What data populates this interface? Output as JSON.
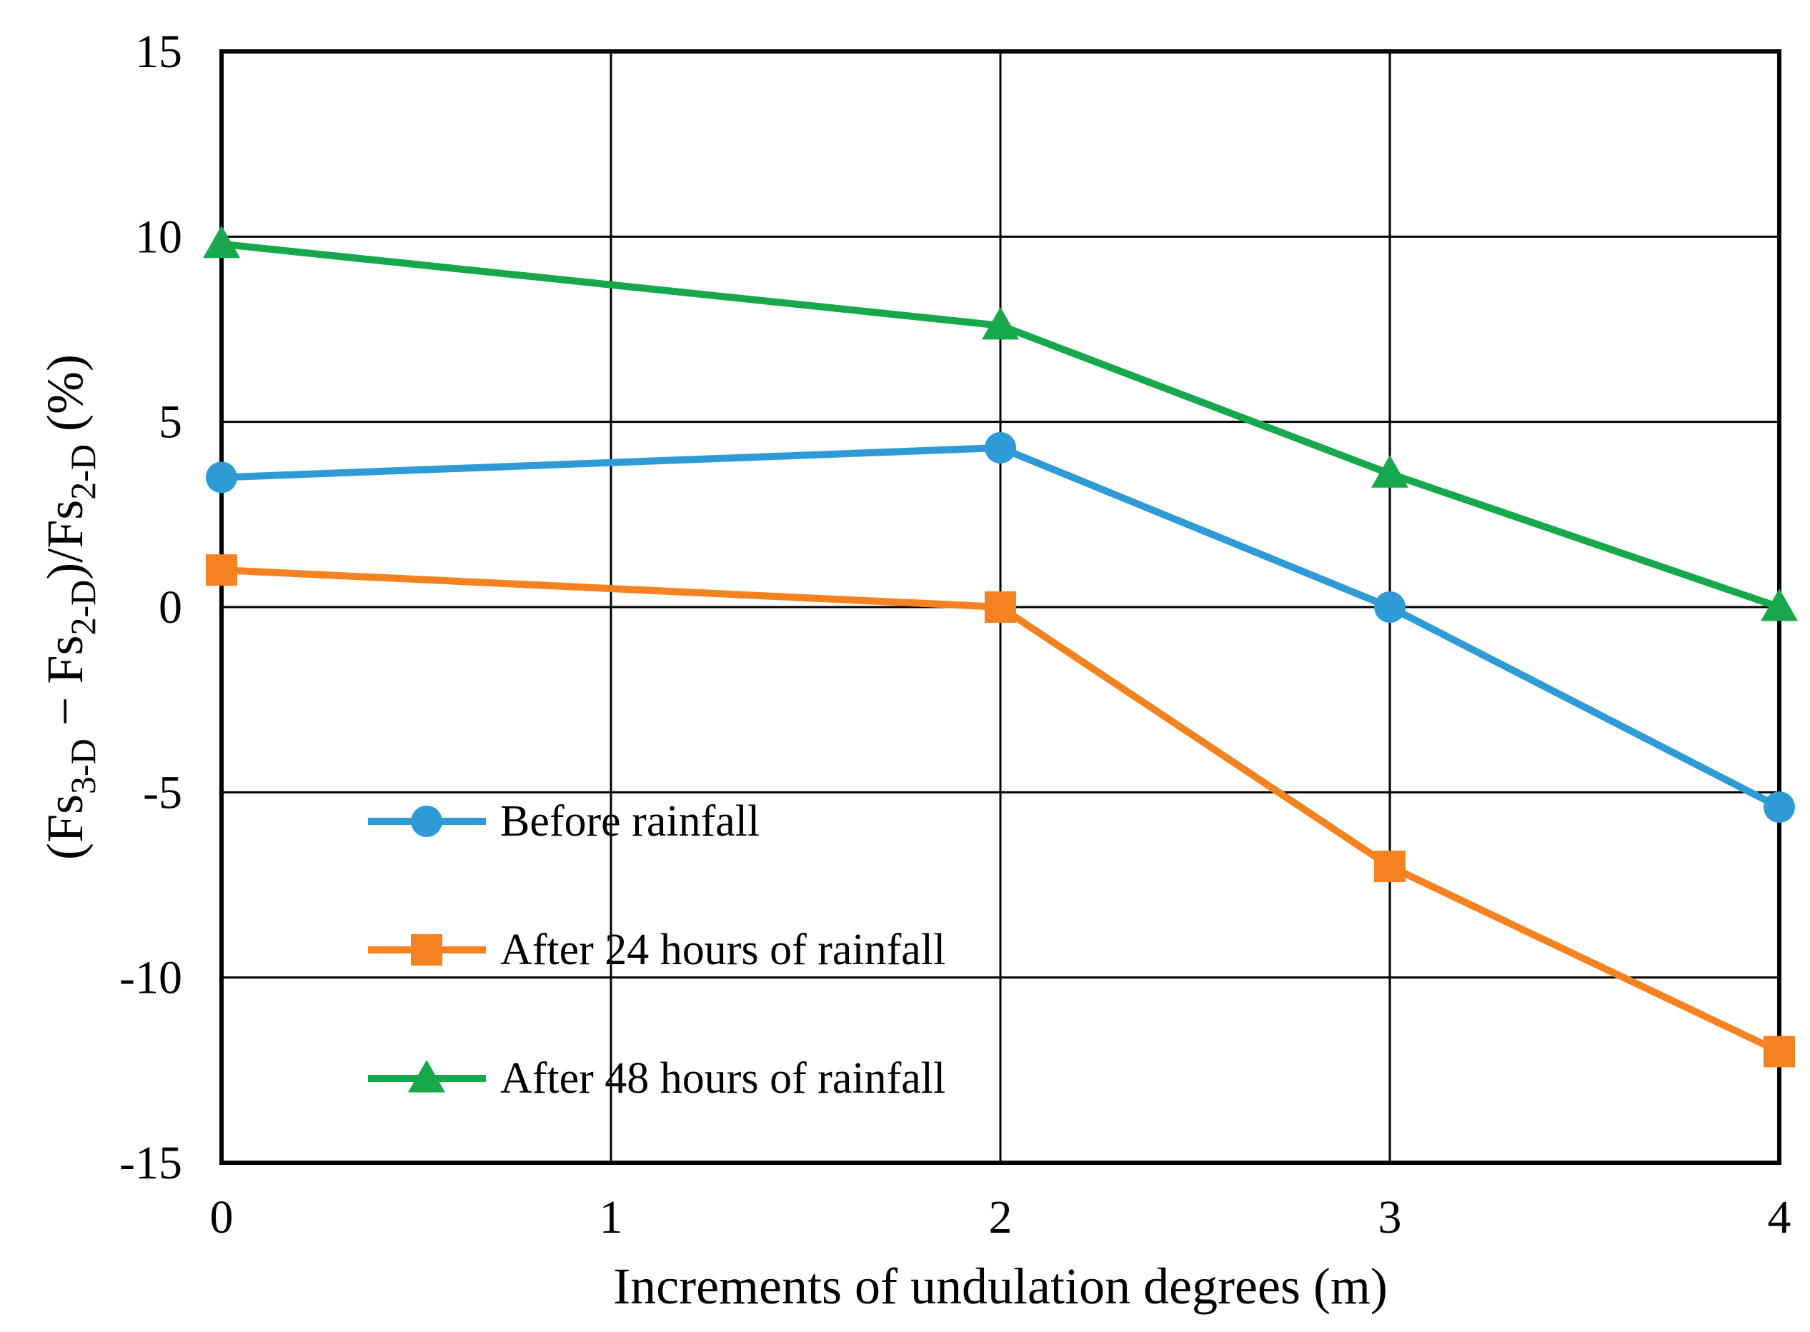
{
  "chart_data": {
    "type": "line",
    "title": "",
    "xlabel": "Increments of undulation degrees (m)",
    "ylabel": {
      "prefix": "(Fs",
      "sub1": "3-D",
      "mid": " − Fs",
      "sub2": "2-D",
      "mid2": ")/Fs",
      "sub3": "2-D",
      "suffix": " (%)"
    },
    "xlim": [
      0,
      4
    ],
    "ylim": [
      -15,
      15
    ],
    "xticks": [
      0,
      1,
      2,
      3,
      4
    ],
    "yticks": [
      -15,
      -10,
      -5,
      0,
      5,
      10,
      15
    ],
    "grid": true,
    "legend_position": "lower-left",
    "series": [
      {
        "name": "Before rainfall",
        "color": "#2E9BD6",
        "marker": "circle",
        "x": [
          0,
          2,
          3,
          4
        ],
        "y": [
          3.5,
          4.3,
          0.0,
          -5.4
        ]
      },
      {
        "name": "After 24 hours of rainfall",
        "color": "#F58220",
        "marker": "square",
        "x": [
          0,
          2,
          3,
          4
        ],
        "y": [
          1.0,
          0.0,
          -7.0,
          -12.0
        ]
      },
      {
        "name": "After 48 hours of rainfall",
        "color": "#17A84B",
        "marker": "triangle",
        "x": [
          0,
          2,
          3,
          4
        ],
        "y": [
          9.8,
          7.6,
          3.6,
          0.0
        ]
      }
    ]
  }
}
